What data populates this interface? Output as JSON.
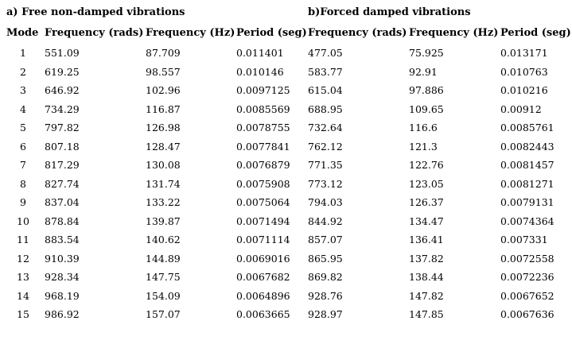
{
  "section_a_title": "a) Free non-damped vibrations",
  "section_b_title": "b)Forced damped vibrations",
  "headers": {
    "mode": "Mode",
    "a_freq_rads": "Frequency (rads)",
    "a_freq_hz": "Frequency (Hz)",
    "a_period": "Period (seg)",
    "b_freq_rads": "Frequency (rads)",
    "b_freq_hz": "Frequency (Hz)",
    "b_period": "Period (seg)"
  },
  "rows": [
    [
      "1",
      "551.09",
      "87.709",
      "0.011401",
      "477.05",
      "75.925",
      "0.013171"
    ],
    [
      "2",
      "619.25",
      "98.557",
      "0.010146",
      "583.77",
      "92.91",
      "0.010763"
    ],
    [
      "3",
      "646.92",
      "102.96",
      "0.0097125",
      "615.04",
      "97.886",
      "0.010216"
    ],
    [
      "4",
      "734.29",
      "116.87",
      "0.0085569",
      "688.95",
      "109.65",
      "0.00912"
    ],
    [
      "5",
      "797.82",
      "126.98",
      "0.0078755",
      "732.64",
      "116.6",
      "0.0085761"
    ],
    [
      "6",
      "807.18",
      "128.47",
      "0.0077841",
      "762.12",
      "121.3",
      "0.0082443"
    ],
    [
      "7",
      "817.29",
      "130.08",
      "0.0076879",
      "771.35",
      "122.76",
      "0.0081457"
    ],
    [
      "8",
      "827.74",
      "131.74",
      "0.0075908",
      "773.12",
      "123.05",
      "0.0081271"
    ],
    [
      "9",
      "837.04",
      "133.22",
      "0.0075064",
      "794.03",
      "126.37",
      "0.0079131"
    ],
    [
      "10",
      "878.84",
      "139.87",
      "0.0071494",
      "844.92",
      "134.47",
      "0.0074364"
    ],
    [
      "11",
      "883.54",
      "140.62",
      "0.0071114",
      "857.07",
      "136.41",
      "0.007331"
    ],
    [
      "12",
      "910.39",
      "144.89",
      "0.0069016",
      "865.95",
      "137.82",
      "0.0072558"
    ],
    [
      "13",
      "928.34",
      "147.75",
      "0.0067682",
      "869.82",
      "138.44",
      "0.0072236"
    ],
    [
      "14",
      "968.19",
      "154.09",
      "0.0064896",
      "928.76",
      "147.82",
      "0.0067652"
    ],
    [
      "15",
      "986.92",
      "157.07",
      "0.0063665",
      "928.97",
      "147.85",
      "0.0067636"
    ]
  ]
}
